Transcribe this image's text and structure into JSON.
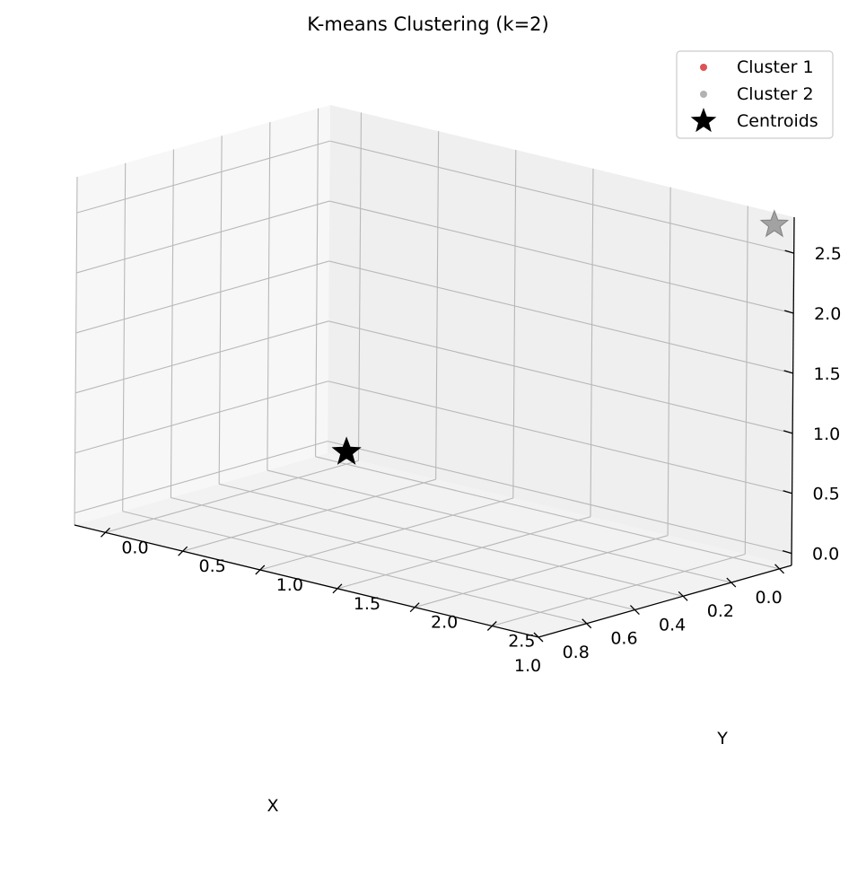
{
  "chart_data": {
    "type": "scatter",
    "title": "K-means Clustering (k=2)",
    "xlabel": "X",
    "ylabel": "Y",
    "zlabel": "",
    "xlim": [
      -0.05,
      1.0
    ],
    "ylim": [
      -0.2,
      2.8
    ],
    "zlim": [
      -0.1,
      2.8
    ],
    "x_ticks": [
      "0.0",
      "0.2",
      "0.4",
      "0.6",
      "0.8",
      "1.0"
    ],
    "y_ticks": [
      "0.0",
      "0.5",
      "1.0",
      "1.5",
      "2.0",
      "2.5"
    ],
    "z_ticks": [
      "0.0",
      "0.5",
      "1.0",
      "1.5",
      "2.0",
      "2.5"
    ],
    "grid": true,
    "legend_position": "top-right",
    "series": [
      {
        "name": "Cluster 1",
        "color": "#d62728",
        "marker": "circle",
        "points": []
      },
      {
        "name": "Cluster 2",
        "color": "#7f7f7f",
        "marker": "circle",
        "points": []
      },
      {
        "name": "Centroids",
        "color": "#000000",
        "marker": "star",
        "points": [
          {
            "x": 0.0,
            "y": 0.0,
            "z": 0.0
          },
          {
            "x": 0.0,
            "y": 2.75,
            "z": 2.75
          }
        ]
      }
    ]
  }
}
